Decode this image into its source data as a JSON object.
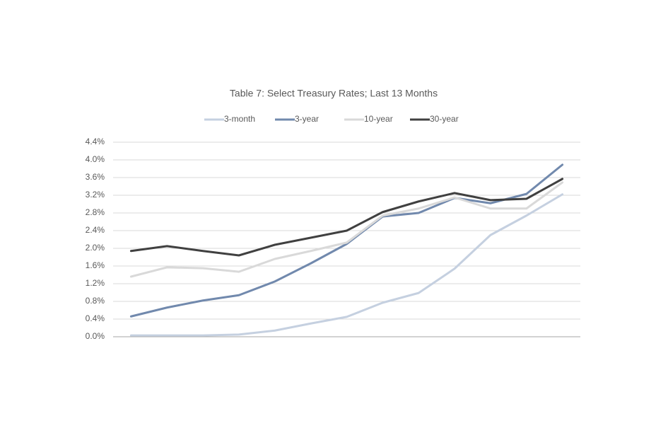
{
  "chart_data": {
    "type": "line",
    "title": "Table 7: Select Treasury Rates; Last 13 Months",
    "categories": [
      null,
      null,
      null,
      null,
      null,
      null,
      null,
      null,
      null,
      null,
      null,
      null,
      null
    ],
    "series": [
      {
        "name": "3-month",
        "color": "#c5d0e0",
        "values": [
          0.03,
          0.03,
          0.03,
          0.05,
          0.14,
          0.3,
          0.45,
          0.77,
          0.99,
          1.54,
          2.3,
          2.74,
          3.22
        ]
      },
      {
        "name": "3-year",
        "color": "#7189ad",
        "values": [
          0.46,
          0.66,
          0.82,
          0.94,
          1.25,
          1.66,
          2.1,
          2.72,
          2.8,
          3.14,
          3.02,
          3.23,
          3.89
        ]
      },
      {
        "name": "10-year",
        "color": "#d9d9d9",
        "values": [
          1.36,
          1.57,
          1.55,
          1.47,
          1.76,
          1.94,
          2.13,
          2.74,
          2.9,
          3.15,
          2.9,
          2.9,
          3.49
        ]
      },
      {
        "name": "30-year",
        "color": "#404040",
        "values": [
          1.94,
          2.05,
          1.94,
          1.84,
          2.08,
          2.24,
          2.4,
          2.82,
          3.06,
          3.25,
          3.09,
          3.12,
          3.57
        ]
      }
    ],
    "ylim": [
      0,
      4.4
    ],
    "yticks": [
      {
        "value": 0,
        "label": "0.0%"
      },
      {
        "value": 0.4,
        "label": "0.4%"
      },
      {
        "value": 0.8,
        "label": "0.8%"
      },
      {
        "value": 1.2,
        "label": "1.2%"
      },
      {
        "value": 1.6,
        "label": "1.6%"
      },
      {
        "value": 2.0,
        "label": "2.0%"
      },
      {
        "value": 2.4,
        "label": "2.4%"
      },
      {
        "value": 2.8,
        "label": "2.8%"
      },
      {
        "value": 3.2,
        "label": "3.2%"
      },
      {
        "value": 3.6,
        "label": "3.6%"
      },
      {
        "value": 4.0,
        "label": "4.0%"
      },
      {
        "value": 4.4,
        "label": "4.4%"
      }
    ],
    "grid": true,
    "legend": "top"
  }
}
